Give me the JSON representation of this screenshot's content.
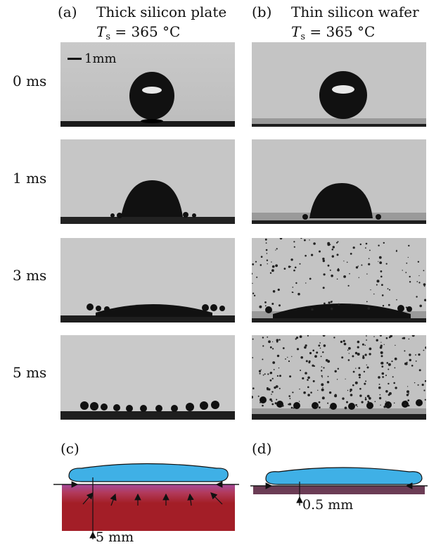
{
  "columns": [
    {
      "label": "(a)",
      "title": "Thick silicon plate",
      "t_sym": "T",
      "t_sub": "s",
      "t_val": "= 365 °C"
    },
    {
      "label": "(b)",
      "title": "Thin silicon wafer",
      "t_sym": "T",
      "t_sub": "s",
      "t_val": "= 365 °C"
    }
  ],
  "rows": [
    {
      "time": "0 ms"
    },
    {
      "time": "1 ms"
    },
    {
      "time": "3 ms"
    },
    {
      "time": "5 ms"
    }
  ],
  "scale_bar": "1mm",
  "schematics": [
    {
      "label": "(c)",
      "thickness": "5 mm",
      "substrate_color": "#a31e27"
    },
    {
      "label": "(d)",
      "thickness": "0.5 mm",
      "substrate_color": "#6b3c55"
    }
  ],
  "colors": {
    "droplet": "#3fb0e6",
    "substrate_thick": "#a31e27",
    "substrate_thin": "#6b3c55"
  }
}
